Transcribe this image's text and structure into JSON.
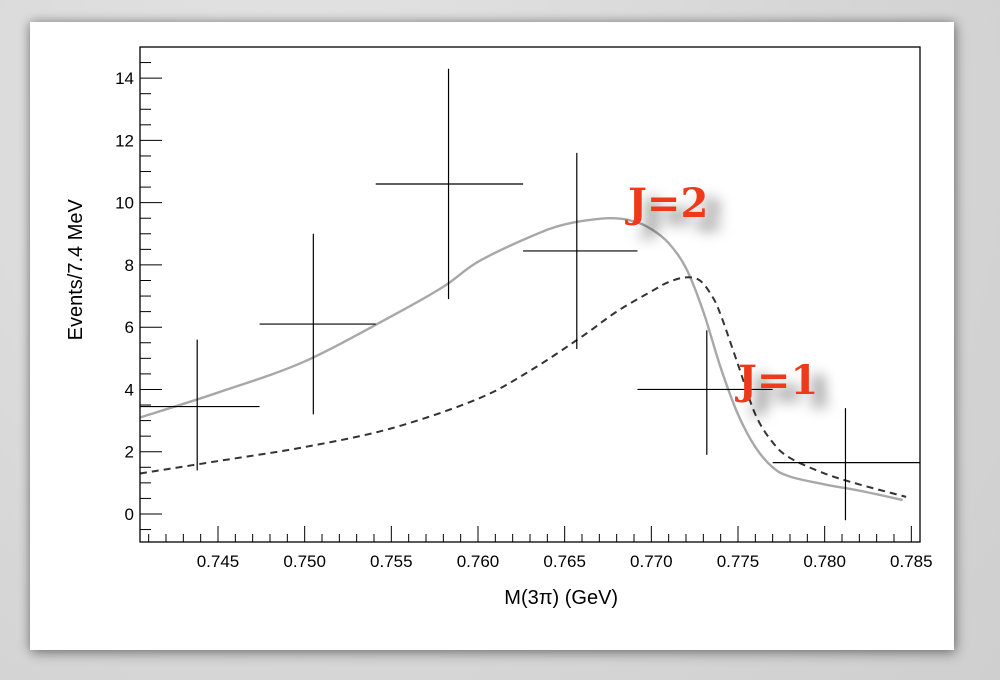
{
  "chart_data": {
    "type": "scatter",
    "xlabel": "M(3π) (GeV)",
    "ylabel": "Events/7.4 MeV",
    "xlim": [
      0.7405,
      0.7855
    ],
    "ylim": [
      -0.9,
      15.0
    ],
    "x_ticks": [
      "0.745",
      "0.750",
      "0.755",
      "0.760",
      "0.765",
      "0.770",
      "0.775",
      "0.780",
      "0.785"
    ],
    "y_ticks": [
      "0",
      "2",
      "4",
      "6",
      "8",
      "10",
      "12",
      "14"
    ],
    "grid": false,
    "data_points": [
      {
        "x": 0.7438,
        "y": 3.45,
        "xlo": 0.7405,
        "xhi": 0.7474,
        "ylo": 1.4,
        "yhi": 5.6
      },
      {
        "x": 0.7505,
        "y": 6.1,
        "xlo": 0.7474,
        "xhi": 0.7541,
        "ylo": 3.2,
        "yhi": 9.0
      },
      {
        "x": 0.7583,
        "y": 10.6,
        "xlo": 0.7541,
        "xhi": 0.7626,
        "ylo": 6.9,
        "yhi": 14.3
      },
      {
        "x": 0.7657,
        "y": 8.45,
        "xlo": 0.7626,
        "xhi": 0.7692,
        "ylo": 5.3,
        "yhi": 11.6
      },
      {
        "x": 0.7732,
        "y": 4.0,
        "xlo": 0.7692,
        "xhi": 0.777,
        "ylo": 1.9,
        "yhi": 5.9
      },
      {
        "x": 0.7812,
        "y": 1.65,
        "xlo": 0.777,
        "xhi": 0.7855,
        "ylo": -0.2,
        "yhi": 3.4
      }
    ],
    "series": [
      {
        "name": "J=2",
        "style": "solid",
        "color": "#a8a8a8",
        "x": [
          0.7405,
          0.745,
          0.75,
          0.755,
          0.758,
          0.76,
          0.763,
          0.765,
          0.7675,
          0.769,
          0.77,
          0.771,
          0.772,
          0.773,
          0.774,
          0.775,
          0.776,
          0.777,
          0.778,
          0.78,
          0.782,
          0.7845
        ],
        "y": [
          3.1,
          3.9,
          4.9,
          6.35,
          7.3,
          8.1,
          8.9,
          9.3,
          9.5,
          9.4,
          9.15,
          8.7,
          7.9,
          6.5,
          4.7,
          3.2,
          2.15,
          1.5,
          1.2,
          0.95,
          0.75,
          0.45
        ]
      },
      {
        "name": "J=1",
        "style": "dashed",
        "color": "#333333",
        "x": [
          0.7405,
          0.745,
          0.75,
          0.755,
          0.76,
          0.763,
          0.766,
          0.768,
          0.77,
          0.771,
          0.772,
          0.7728,
          0.7735,
          0.774,
          0.775,
          0.776,
          0.777,
          0.778,
          0.78,
          0.782,
          0.7847
        ],
        "y": [
          1.3,
          1.7,
          2.15,
          2.75,
          3.7,
          4.6,
          5.7,
          6.5,
          7.15,
          7.45,
          7.6,
          7.5,
          7.0,
          6.4,
          4.8,
          3.2,
          2.3,
          1.8,
          1.3,
          0.95,
          0.55
        ]
      }
    ],
    "annotations": [
      {
        "text": "J=2",
        "color": "#ee3a1a"
      },
      {
        "text": "J=1",
        "color": "#ee3a1a"
      }
    ]
  }
}
